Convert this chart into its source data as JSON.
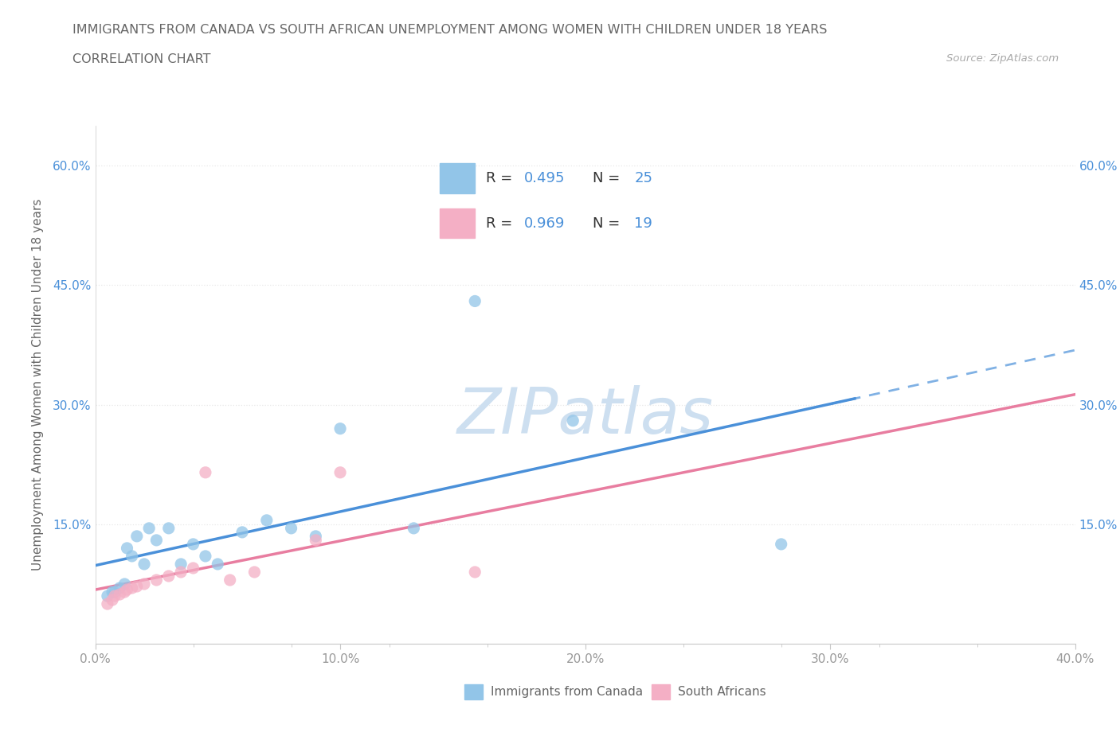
{
  "title_line1": "IMMIGRANTS FROM CANADA VS SOUTH AFRICAN UNEMPLOYMENT AMONG WOMEN WITH CHILDREN UNDER 18 YEARS",
  "title_line2": "CORRELATION CHART",
  "source_text": "Source: ZipAtlas.com",
  "ylabel": "Unemployment Among Women with Children Under 18 years",
  "xlim": [
    0.0,
    0.4
  ],
  "ylim": [
    0.0,
    0.65
  ],
  "xtick_values": [
    0.0,
    0.1,
    0.2,
    0.3,
    0.4
  ],
  "xtick_labels": [
    "0.0%",
    "10.0%",
    "20.0%",
    "30.0%",
    "40.0%"
  ],
  "ytick_values": [
    0.15,
    0.3,
    0.45,
    0.6
  ],
  "ytick_labels": [
    "15.0%",
    "30.0%",
    "45.0%",
    "60.0%"
  ],
  "blue_color": "#92c5e8",
  "pink_color": "#f4afc5",
  "blue_line_color": "#4a90d9",
  "pink_line_color": "#e87da0",
  "watermark_color": "#cddff0",
  "R_canada": 0.495,
  "N_canada": 25,
  "R_sa": 0.969,
  "N_sa": 19,
  "canada_x": [
    0.005,
    0.007,
    0.008,
    0.01,
    0.012,
    0.013,
    0.015,
    0.017,
    0.02,
    0.022,
    0.025,
    0.03,
    0.035,
    0.04,
    0.045,
    0.05,
    0.06,
    0.07,
    0.08,
    0.09,
    0.1,
    0.13,
    0.155,
    0.195,
    0.28
  ],
  "canada_y": [
    0.06,
    0.065,
    0.065,
    0.07,
    0.075,
    0.12,
    0.11,
    0.135,
    0.1,
    0.145,
    0.13,
    0.145,
    0.1,
    0.125,
    0.11,
    0.1,
    0.14,
    0.155,
    0.145,
    0.135,
    0.27,
    0.145,
    0.43,
    0.28,
    0.125
  ],
  "sa_x": [
    0.005,
    0.007,
    0.008,
    0.01,
    0.012,
    0.013,
    0.015,
    0.017,
    0.02,
    0.025,
    0.03,
    0.035,
    0.04,
    0.045,
    0.055,
    0.065,
    0.09,
    0.1,
    0.155
  ],
  "sa_y": [
    0.05,
    0.055,
    0.06,
    0.062,
    0.065,
    0.068,
    0.07,
    0.072,
    0.075,
    0.08,
    0.085,
    0.09,
    0.095,
    0.215,
    0.08,
    0.09,
    0.13,
    0.215,
    0.09
  ],
  "background_color": "#ffffff",
  "grid_color": "#e8e8e8",
  "title_color": "#666666",
  "label_color": "#666666",
  "tick_color": "#999999",
  "legend_bg": "#f7f9fb"
}
